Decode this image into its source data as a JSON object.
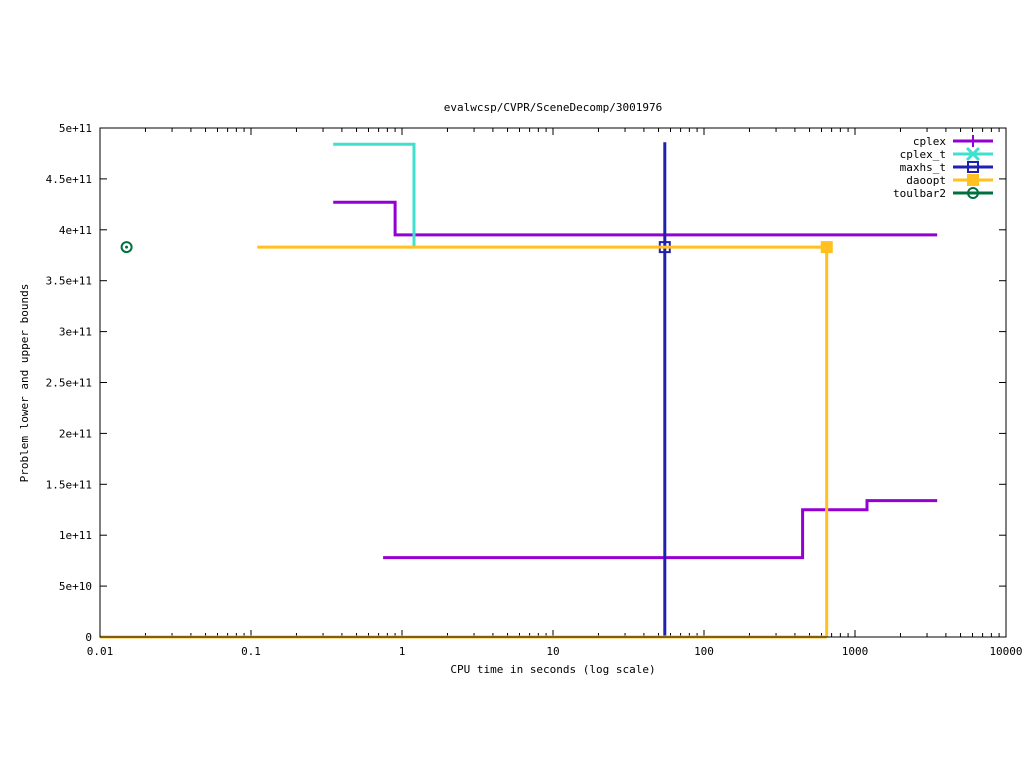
{
  "chart_data": {
    "type": "line",
    "title": "evalwcsp/CVPR/SceneDecomp/3001976",
    "xlabel": "CPU time in seconds (log scale)",
    "ylabel": "Problem lower and upper bounds",
    "xscale": "log",
    "xlim": [
      0.01,
      10000
    ],
    "ylim": [
      0,
      500000000000
    ],
    "grid": false,
    "legend_position": "top-right",
    "x_ticks": [
      {
        "value": 0.01,
        "label": "0.01"
      },
      {
        "value": 0.1,
        "label": "0.1"
      },
      {
        "value": 1,
        "label": "1"
      },
      {
        "value": 10,
        "label": "10"
      },
      {
        "value": 100,
        "label": "100"
      },
      {
        "value": 1000,
        "label": "1000"
      },
      {
        "value": 10000,
        "label": "10000"
      }
    ],
    "y_ticks": [
      {
        "value": 0,
        "label": "0"
      },
      {
        "value": 50000000000,
        "label": "5e+10"
      },
      {
        "value": 100000000000,
        "label": "1e+11"
      },
      {
        "value": 150000000000,
        "label": "1.5e+11"
      },
      {
        "value": 200000000000,
        "label": "2e+11"
      },
      {
        "value": 250000000000,
        "label": "2.5e+11"
      },
      {
        "value": 300000000000,
        "label": "3e+11"
      },
      {
        "value": 350000000000,
        "label": "3.5e+11"
      },
      {
        "value": 400000000000,
        "label": "4e+11"
      },
      {
        "value": 450000000000,
        "label": "4.5e+11"
      },
      {
        "value": 500000000000,
        "label": "5e+11"
      }
    ],
    "series": [
      {
        "name": "cplex",
        "color": "#9400d3",
        "marker": "plus",
        "lines": [
          [
            [
              0.35,
              427000000000
            ],
            [
              0.9,
              427000000000
            ],
            [
              0.9,
              395000000000
            ],
            [
              3500,
              395000000000
            ]
          ],
          [
            [
              0.75,
              78000000000
            ],
            [
              450,
              78000000000
            ],
            [
              450,
              125000000000
            ],
            [
              1200,
              125000000000
            ],
            [
              1200,
              134000000000
            ],
            [
              3500,
              134000000000
            ]
          ]
        ],
        "points": []
      },
      {
        "name": "cplex_t",
        "color": "#40e0d0",
        "marker": "cross",
        "lines": [
          [
            [
              0.35,
              484000000000
            ],
            [
              1.2,
              484000000000
            ],
            [
              1.2,
              383000000000
            ]
          ]
        ],
        "points": []
      },
      {
        "name": "maxhs_t",
        "color": "#2020b0",
        "marker": "square-open",
        "lines": [
          [
            [
              55,
              486000000000
            ],
            [
              55,
              0
            ]
          ]
        ],
        "points": [
          [
            55,
            383000000000
          ]
        ]
      },
      {
        "name": "daoopt",
        "color": "#ffc020",
        "marker": "square-filled",
        "lines": [
          [
            [
              0.11,
              383000000000
            ],
            [
              650,
              383000000000
            ],
            [
              650,
              0
            ]
          ],
          [
            [
              0.01,
              0
            ],
            [
              650,
              0
            ]
          ]
        ],
        "points": [
          [
            650,
            383000000000
          ]
        ]
      },
      {
        "name": "toulbar2",
        "color": "#007040",
        "marker": "circle-dot",
        "lines": [],
        "points": [
          [
            0.015,
            383000000000
          ]
        ]
      }
    ]
  }
}
